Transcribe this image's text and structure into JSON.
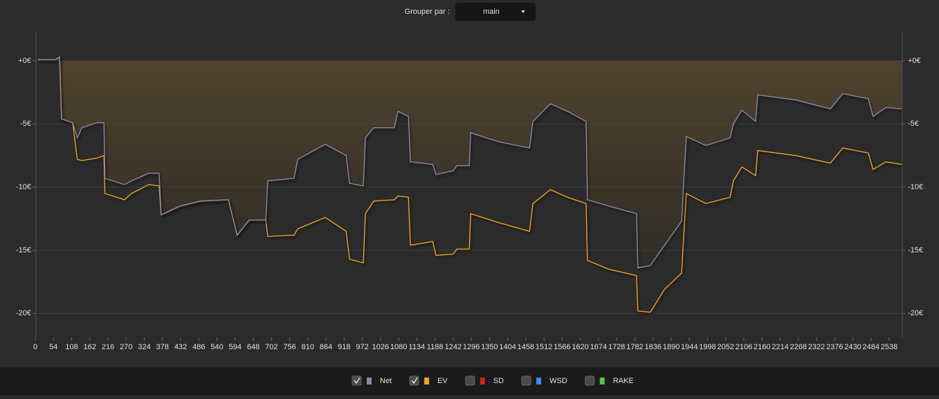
{
  "controls": {
    "group_by_label": "Grouper par :",
    "group_by_value": "main"
  },
  "chart_data": {
    "type": "line",
    "x": [
      8,
      60,
      72,
      78,
      111,
      125,
      138,
      183,
      204,
      207,
      265,
      286,
      337,
      368,
      374,
      430,
      492,
      574,
      600,
      636,
      685,
      691,
      769,
      780,
      862,
      924,
      934,
      975,
      981,
      1006,
      1067,
      1078,
      1109,
      1115,
      1181,
      1191,
      1242,
      1253,
      1290,
      1294,
      1376,
      1469,
      1479,
      1531,
      1582,
      1637,
      1641,
      1705,
      1787,
      1791,
      1828,
      1870,
      1921,
      1927,
      1935,
      1993,
      2065,
      2075,
      2100,
      2141,
      2147,
      2260,
      2363,
      2400,
      2476,
      2490,
      2528,
      2575
    ],
    "series": [
      {
        "name": "Net",
        "color": "#8e8aa8",
        "checked": true,
        "values": [
          0.1,
          0.1,
          0.3,
          -4.6,
          -4.9,
          -6.1,
          -5.3,
          -4.9,
          -4.9,
          -9.3,
          -9.8,
          -9.5,
          -8.9,
          -8.9,
          -12.2,
          -11.5,
          -11.1,
          -11.0,
          -13.8,
          -12.6,
          -12.6,
          -9.5,
          -9.3,
          -7.8,
          -6.6,
          -7.5,
          -9.7,
          -9.9,
          -6.1,
          -5.3,
          -5.3,
          -4.0,
          -4.4,
          -8.0,
          -8.2,
          -9.0,
          -8.7,
          -8.3,
          -8.3,
          -5.7,
          -6.4,
          -6.9,
          -4.8,
          -3.4,
          -4.0,
          -4.8,
          -11.0,
          -11.5,
          -12.1,
          -16.4,
          -16.2,
          -14.6,
          -12.7,
          -9.7,
          -6.0,
          -6.7,
          -6.1,
          -5.0,
          -3.9,
          -4.8,
          -2.7,
          -3.1,
          -3.8,
          -2.6,
          -3.0,
          -4.4,
          -3.7,
          -3.8
        ]
      },
      {
        "name": "EV",
        "color": "#f5a623",
        "checked": true,
        "values": [
          0.1,
          0.1,
          0.3,
          -4.6,
          -4.9,
          -7.8,
          -7.9,
          -7.7,
          -7.5,
          -10.5,
          -11.0,
          -10.5,
          -9.8,
          -9.9,
          -12.2,
          -11.5,
          -11.1,
          -11.0,
          -13.8,
          -12.6,
          -12.6,
          -13.9,
          -13.8,
          -13.3,
          -12.4,
          -13.5,
          -15.7,
          -16.0,
          -12.1,
          -11.1,
          -11.0,
          -10.7,
          -10.8,
          -14.6,
          -14.3,
          -15.4,
          -15.3,
          -14.9,
          -14.9,
          -12.1,
          -12.8,
          -13.5,
          -11.3,
          -10.2,
          -10.8,
          -11.3,
          -15.8,
          -16.5,
          -17.0,
          -19.8,
          -19.9,
          -18.1,
          -16.8,
          -14.0,
          -10.5,
          -11.3,
          -10.8,
          -9.5,
          -8.4,
          -9.1,
          -7.1,
          -7.5,
          -8.1,
          -6.9,
          -7.3,
          -8.6,
          -8.0,
          -8.2
        ]
      }
    ],
    "toggles": [
      {
        "name": "SD",
        "color": "#c42a1a",
        "checked": false
      },
      {
        "name": "WSD",
        "color": "#3a8ee0",
        "checked": false
      },
      {
        "name": "RAKE",
        "color": "#5cc050",
        "checked": false
      }
    ],
    "xlim": [
      0,
      2577
    ],
    "xticks": [
      0,
      54,
      108,
      162,
      216,
      270,
      324,
      378,
      432,
      486,
      540,
      594,
      648,
      702,
      756,
      810,
      864,
      918,
      972,
      1026,
      1080,
      1134,
      1188,
      1242,
      1296,
      1350,
      1404,
      1458,
      1512,
      1566,
      1620,
      1674,
      1728,
      1782,
      1836,
      1890,
      1944,
      1998,
      2052,
      2106,
      2160,
      2214,
      2268,
      2322,
      2376,
      2430,
      2484,
      2538
    ],
    "ylim": [
      -21.9,
      2.35
    ],
    "yticks": [
      {
        "value": 0,
        "label": "+0€"
      },
      {
        "value": -5,
        "label": "-5€"
      },
      {
        "value": -10,
        "label": "-10€"
      },
      {
        "value": -15,
        "label": "-15€"
      },
      {
        "value": -20,
        "label": "-20€"
      }
    ],
    "grid": true,
    "right_axis": true
  }
}
